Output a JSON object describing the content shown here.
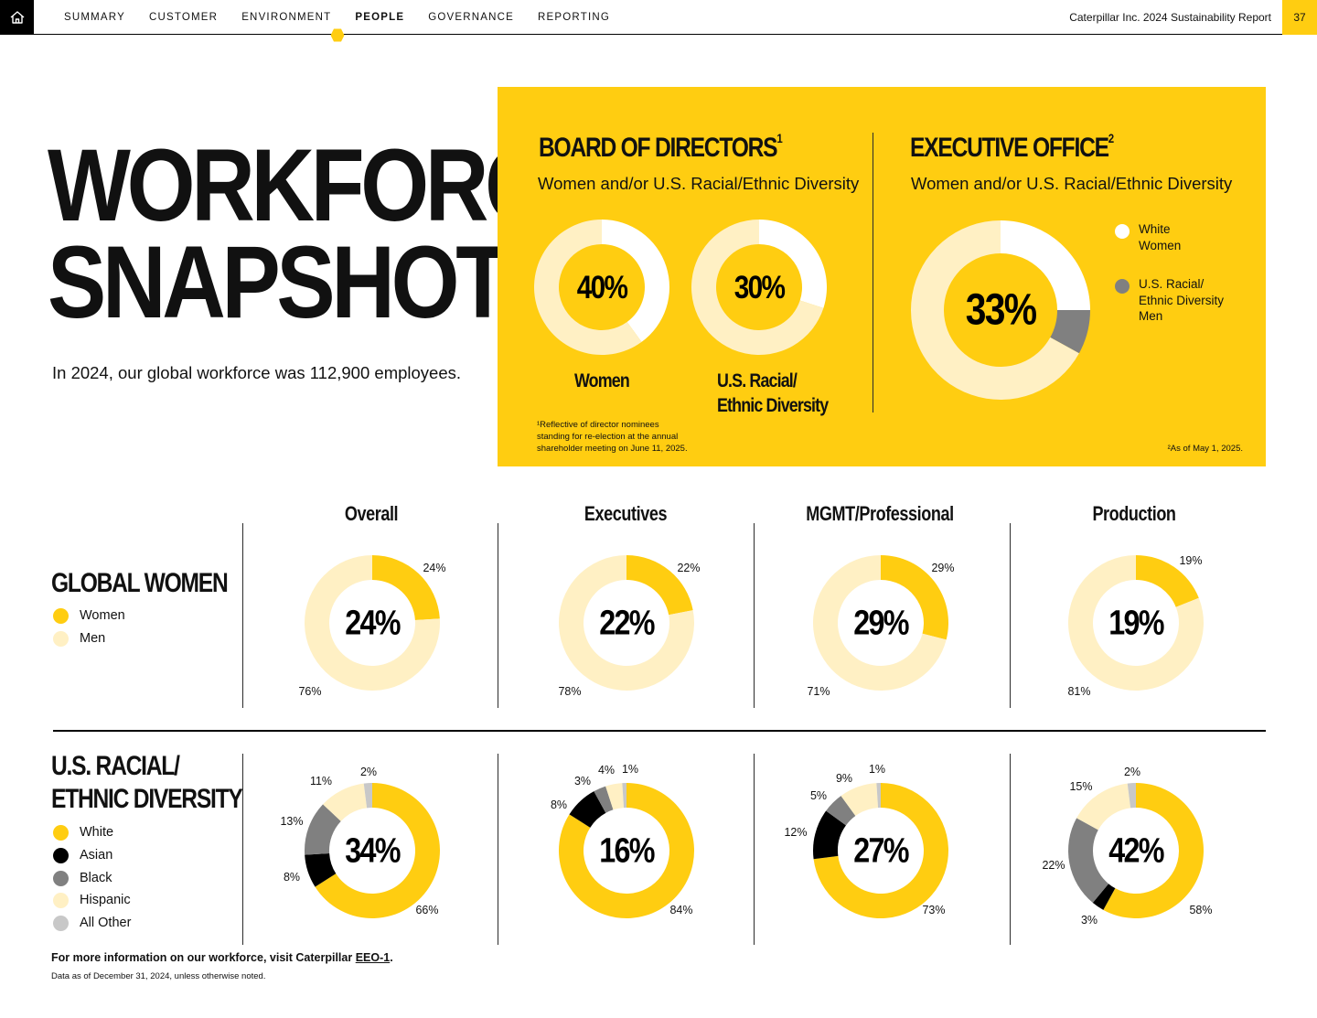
{
  "nav": {
    "items": [
      "SUMMARY",
      "CUSTOMER",
      "ENVIRONMENT",
      "PEOPLE",
      "GOVERNANCE",
      "REPORTING"
    ],
    "active": "PEOPLE",
    "report_title": "Caterpillar Inc. 2024 Sustainability Report",
    "page_number": "37"
  },
  "hero": {
    "title_line1": "WORKFORCE",
    "title_line2": "SNAPSHOT",
    "subtitle": "In 2024, our global workforce was 112,900 employees."
  },
  "board": {
    "heading": "BOARD OF DIRECTORS",
    "heading_sup": "1",
    "sub": "Women and/or U.S. Racial/Ethnic Diversity",
    "label_women": "Women",
    "label_diversity_1": "U.S. Racial/",
    "label_diversity_2": "Ethnic Diversity",
    "footnote_1": "¹Reflective of director nominees",
    "footnote_2": "standing for re-election at the annual",
    "footnote_3": "shareholder meeting on June 11, 2025."
  },
  "exec_office": {
    "heading": "EXECUTIVE OFFICE",
    "heading_sup": "2",
    "sub": "Women and/or U.S. Racial/Ethnic Diversity",
    "legend_white_women_1": "White",
    "legend_white_women_2": "Women",
    "legend_div_men_1": "U.S. Racial/",
    "legend_div_men_2": "Ethnic Diversity",
    "legend_div_men_3": "Men",
    "footnote": "²As of May 1, 2025."
  },
  "columns": [
    "Overall",
    "Executives",
    "MGMT/Professional",
    "Production"
  ],
  "global_women": {
    "title": "GLOBAL WOMEN",
    "legend": [
      "Women",
      "Men"
    ]
  },
  "diversity": {
    "title_line1": "U.S. RACIAL/",
    "title_line2": "ETHNIC DIVERSITY",
    "legend": [
      "White",
      "Asian",
      "Black",
      "Hispanic",
      "All Other"
    ]
  },
  "footer": {
    "more_prefix": "For more information on our workforce, visit Caterpillar ",
    "more_link": "EEO-1",
    "more_suffix": ".",
    "as_of": "Data as of December 31, 2024, unless otherwise noted."
  },
  "colors": {
    "yellow": "#FFCD11",
    "light_yellow": "#FFF0C4",
    "black": "#000000",
    "gray": "#808080",
    "light_gray": "#C8C8C8",
    "white": "#FFFFFF"
  },
  "chart_data": [
    {
      "type": "pie",
      "chart": "board-women",
      "center_label": "40%",
      "series": [
        {
          "label": "Women",
          "value": 40
        },
        {
          "label": "Other",
          "value": 60
        }
      ]
    },
    {
      "type": "pie",
      "chart": "board-diversity",
      "center_label": "30%",
      "series": [
        {
          "label": "U.S. Racial/Ethnic Diversity",
          "value": 30
        },
        {
          "label": "Other",
          "value": 70
        }
      ]
    },
    {
      "type": "pie",
      "chart": "executive-office",
      "center_label": "33%",
      "series": [
        {
          "label": "White Women",
          "value": 25
        },
        {
          "label": "U.S. Racial/Ethnic Diversity Men",
          "value": 8
        },
        {
          "label": "Other",
          "value": 67
        }
      ]
    },
    {
      "type": "pie",
      "chart": "women-overall",
      "center_label": "24%",
      "series": [
        {
          "label": "Women",
          "value": 24
        },
        {
          "label": "Men",
          "value": 76
        }
      ]
    },
    {
      "type": "pie",
      "chart": "women-executives",
      "center_label": "22%",
      "series": [
        {
          "label": "Women",
          "value": 22
        },
        {
          "label": "Men",
          "value": 78
        }
      ]
    },
    {
      "type": "pie",
      "chart": "women-mgmt",
      "center_label": "29%",
      "series": [
        {
          "label": "Women",
          "value": 29
        },
        {
          "label": "Men",
          "value": 71
        }
      ]
    },
    {
      "type": "pie",
      "chart": "women-production",
      "center_label": "19%",
      "series": [
        {
          "label": "Women",
          "value": 19
        },
        {
          "label": "Men",
          "value": 81
        }
      ]
    },
    {
      "type": "pie",
      "chart": "diversity-overall",
      "center_label": "34%",
      "series": [
        {
          "label": "White",
          "value": 66
        },
        {
          "label": "Asian",
          "value": 8
        },
        {
          "label": "Black",
          "value": 13
        },
        {
          "label": "Hispanic",
          "value": 11
        },
        {
          "label": "All Other",
          "value": 2
        }
      ]
    },
    {
      "type": "pie",
      "chart": "diversity-executives",
      "center_label": "16%",
      "series": [
        {
          "label": "White",
          "value": 84
        },
        {
          "label": "Asian",
          "value": 8
        },
        {
          "label": "Black",
          "value": 3
        },
        {
          "label": "Hispanic",
          "value": 4
        },
        {
          "label": "All Other",
          "value": 1
        }
      ]
    },
    {
      "type": "pie",
      "chart": "diversity-mgmt",
      "center_label": "27%",
      "series": [
        {
          "label": "White",
          "value": 73
        },
        {
          "label": "Asian",
          "value": 12
        },
        {
          "label": "Black",
          "value": 5
        },
        {
          "label": "Hispanic",
          "value": 9
        },
        {
          "label": "All Other",
          "value": 1
        }
      ]
    },
    {
      "type": "pie",
      "chart": "diversity-production",
      "center_label": "42%",
      "series": [
        {
          "label": "White",
          "value": 58
        },
        {
          "label": "Asian",
          "value": 3
        },
        {
          "label": "Black",
          "value": 22
        },
        {
          "label": "Hispanic",
          "value": 15
        },
        {
          "label": "All Other",
          "value": 2
        }
      ]
    }
  ]
}
